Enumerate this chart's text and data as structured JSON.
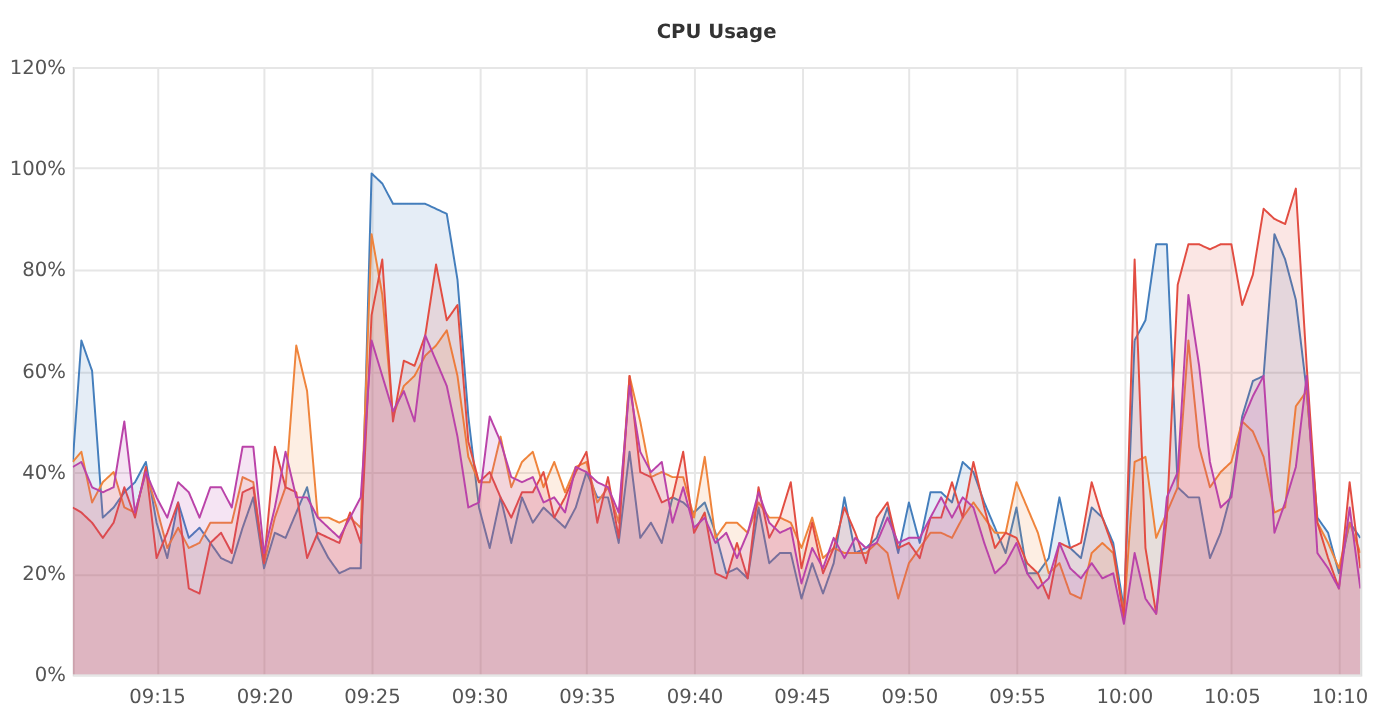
{
  "chart_data": {
    "type": "area",
    "title": "CPU Usage",
    "x": [
      9.185,
      9.1917,
      9.2,
      9.2083,
      9.2167,
      9.225,
      9.2333,
      9.2417,
      9.25,
      9.2583,
      9.2667,
      9.275,
      9.2833,
      9.2917,
      9.3,
      9.3083,
      9.3167,
      9.325,
      9.3333,
      9.3417,
      9.35,
      9.3583,
      9.3667,
      9.375,
      9.3833,
      9.3917,
      9.4,
      9.4083,
      9.4167,
      9.425,
      9.4333,
      9.4417,
      9.45,
      9.4583,
      9.4667,
      9.475,
      9.4833,
      9.4917,
      9.5,
      9.5083,
      9.5167,
      9.525,
      9.5333,
      9.5417,
      9.55,
      9.5583,
      9.5667,
      9.575,
      9.5833,
      9.5917,
      9.6,
      9.6083,
      9.6167,
      9.625,
      9.6333,
      9.6417,
      9.65,
      9.6583,
      9.6667,
      9.675,
      9.6833,
      9.6917,
      9.7,
      9.7083,
      9.7167,
      9.725,
      9.7333,
      9.7417,
      9.75,
      9.7583,
      9.7667,
      9.775,
      9.7833,
      9.7917,
      9.8,
      9.8083,
      9.8167,
      9.825,
      9.8333,
      9.8417,
      9.85,
      9.8583,
      9.8667,
      9.875,
      9.8833,
      9.8917,
      9.9,
      9.9083,
      9.9167,
      9.925,
      9.9333,
      9.9417,
      9.95,
      9.9583,
      9.9667,
      9.975,
      9.9833,
      9.9917,
      10.0,
      10.0083,
      10.0167,
      10.025,
      10.0333,
      10.0417,
      10.05,
      10.0583,
      10.0667,
      10.075,
      10.0833,
      10.0917,
      10.1,
      10.1083,
      10.1167,
      10.125,
      10.1333,
      10.1417,
      10.15,
      10.1583,
      10.1667,
      10.175,
      10.1833
    ],
    "series": [
      {
        "color": "#447ebc",
        "values": [
          42,
          66,
          60,
          31,
          33,
          36,
          38,
          42,
          30,
          23,
          34,
          27,
          29,
          26,
          23,
          22,
          29,
          35,
          21,
          28,
          27,
          32,
          37,
          27,
          23,
          20,
          21,
          21,
          99,
          97,
          93,
          93,
          93,
          93,
          92,
          91,
          78,
          51,
          33,
          25,
          35,
          26,
          35,
          30,
          33,
          31,
          29,
          33,
          40,
          35,
          35,
          26,
          44,
          27,
          30,
          26,
          35,
          34,
          32,
          34,
          28,
          20,
          21,
          19,
          33,
          22,
          24,
          24,
          15,
          22,
          16,
          22,
          35,
          24,
          25,
          27,
          33,
          24,
          34,
          26,
          36,
          36,
          34,
          42,
          40,
          34,
          29,
          24,
          33,
          20,
          20,
          23,
          35,
          25,
          23,
          33,
          31,
          26,
          13,
          66,
          70,
          85,
          85,
          37,
          35,
          35,
          23,
          28,
          36,
          51,
          58,
          59,
          87,
          82,
          74,
          56,
          31,
          28,
          20,
          30,
          27
        ]
      },
      {
        "color": "#ef843c",
        "values": [
          42,
          44,
          34,
          38,
          40,
          33,
          32,
          40,
          33,
          25,
          29,
          25,
          26,
          30,
          30,
          30,
          39,
          38,
          22,
          31,
          37,
          65,
          56,
          31,
          31,
          30,
          31,
          29,
          87,
          75,
          51,
          57,
          59,
          63,
          65,
          68,
          59,
          43,
          38,
          38,
          47,
          37,
          42,
          44,
          37,
          42,
          36,
          41,
          42,
          34,
          37,
          30,
          59,
          50,
          39,
          40,
          39,
          39,
          31,
          43,
          27,
          30,
          30,
          28,
          34,
          31,
          31,
          30,
          25,
          31,
          23,
          25,
          24,
          24,
          24,
          26,
          24,
          15,
          22,
          25,
          28,
          28,
          27,
          31,
          34,
          31,
          28,
          28,
          38,
          33,
          28,
          20,
          22,
          16,
          15,
          24,
          26,
          24,
          12,
          42,
          43,
          27,
          32,
          37,
          66,
          45,
          37,
          40,
          42,
          50,
          48,
          43,
          32,
          33,
          53,
          56,
          30,
          26,
          21,
          30,
          24
        ]
      },
      {
        "color": "#e24d42",
        "values": [
          33,
          32,
          30,
          27,
          30,
          37,
          31,
          41,
          23,
          28,
          34,
          17,
          16,
          26,
          28,
          24,
          36,
          37,
          22,
          45,
          37,
          36,
          23,
          28,
          27,
          26,
          32,
          26,
          71,
          82,
          50,
          62,
          61,
          67,
          81,
          70,
          73,
          46,
          38,
          40,
          35,
          31,
          36,
          36,
          40,
          31,
          35,
          40,
          44,
          30,
          39,
          27,
          59,
          40,
          39,
          34,
          35,
          44,
          28,
          32,
          20,
          19,
          26,
          19,
          37,
          27,
          31,
          38,
          21,
          30,
          20,
          25,
          33,
          28,
          22,
          31,
          34,
          25,
          26,
          23,
          31,
          31,
          38,
          31,
          42,
          33,
          25,
          28,
          27,
          22,
          20,
          15,
          26,
          25,
          26,
          38,
          31,
          25,
          11,
          82,
          25,
          12,
          31,
          77,
          85,
          85,
          84,
          85,
          85,
          73,
          79,
          92,
          90,
          89,
          96,
          61,
          30,
          23,
          17,
          38,
          21
        ]
      },
      {
        "color": "#ba43a9",
        "values": [
          41,
          42,
          37,
          36,
          37,
          50,
          32,
          40,
          35,
          31,
          38,
          36,
          31,
          37,
          37,
          33,
          45,
          45,
          24,
          33,
          44,
          35,
          35,
          31,
          29,
          27,
          31,
          35,
          66,
          59,
          52,
          56,
          50,
          67,
          62,
          57,
          47,
          33,
          34,
          51,
          46,
          39,
          38,
          39,
          34,
          35,
          32,
          41,
          40,
          38,
          37,
          32,
          57,
          44,
          40,
          42,
          30,
          37,
          29,
          31,
          26,
          28,
          23,
          28,
          36,
          30,
          28,
          29,
          18,
          25,
          21,
          27,
          23,
          27,
          25,
          26,
          31,
          26,
          27,
          27,
          31,
          35,
          31,
          35,
          33,
          26,
          20,
          22,
          26,
          20,
          17,
          19,
          26,
          21,
          19,
          22,
          19,
          20,
          10,
          24,
          15,
          12,
          35,
          40,
          75,
          61,
          42,
          33,
          35,
          50,
          55,
          59,
          28,
          34,
          41,
          59,
          24,
          21,
          17,
          33,
          17
        ]
      }
    ],
    "xlim": [
      9.185,
      10.1833
    ],
    "xticks": [
      {
        "value": 9.25,
        "label": "09:15"
      },
      {
        "value": 9.3333,
        "label": "09:20"
      },
      {
        "value": 9.4167,
        "label": "09:25"
      },
      {
        "value": 9.5,
        "label": "09:30"
      },
      {
        "value": 9.5833,
        "label": "09:35"
      },
      {
        "value": 9.6667,
        "label": "09:40"
      },
      {
        "value": 9.75,
        "label": "09:45"
      },
      {
        "value": 9.8333,
        "label": "09:50"
      },
      {
        "value": 9.9167,
        "label": "09:55"
      },
      {
        "value": 10.0,
        "label": "10:00"
      },
      {
        "value": 10.0833,
        "label": "10:05"
      },
      {
        "value": 10.1667,
        "label": "10:10"
      }
    ],
    "ylim": [
      0,
      120
    ],
    "yticks": [
      {
        "value": 0,
        "label": "0%"
      },
      {
        "value": 20,
        "label": "20%"
      },
      {
        "value": 40,
        "label": "40%"
      },
      {
        "value": 60,
        "label": "60%"
      },
      {
        "value": 80,
        "label": "80%"
      },
      {
        "value": 100,
        "label": "100%"
      },
      {
        "value": 120,
        "label": "120%"
      }
    ],
    "grid": true,
    "line_style": "solid",
    "marker": "none"
  }
}
